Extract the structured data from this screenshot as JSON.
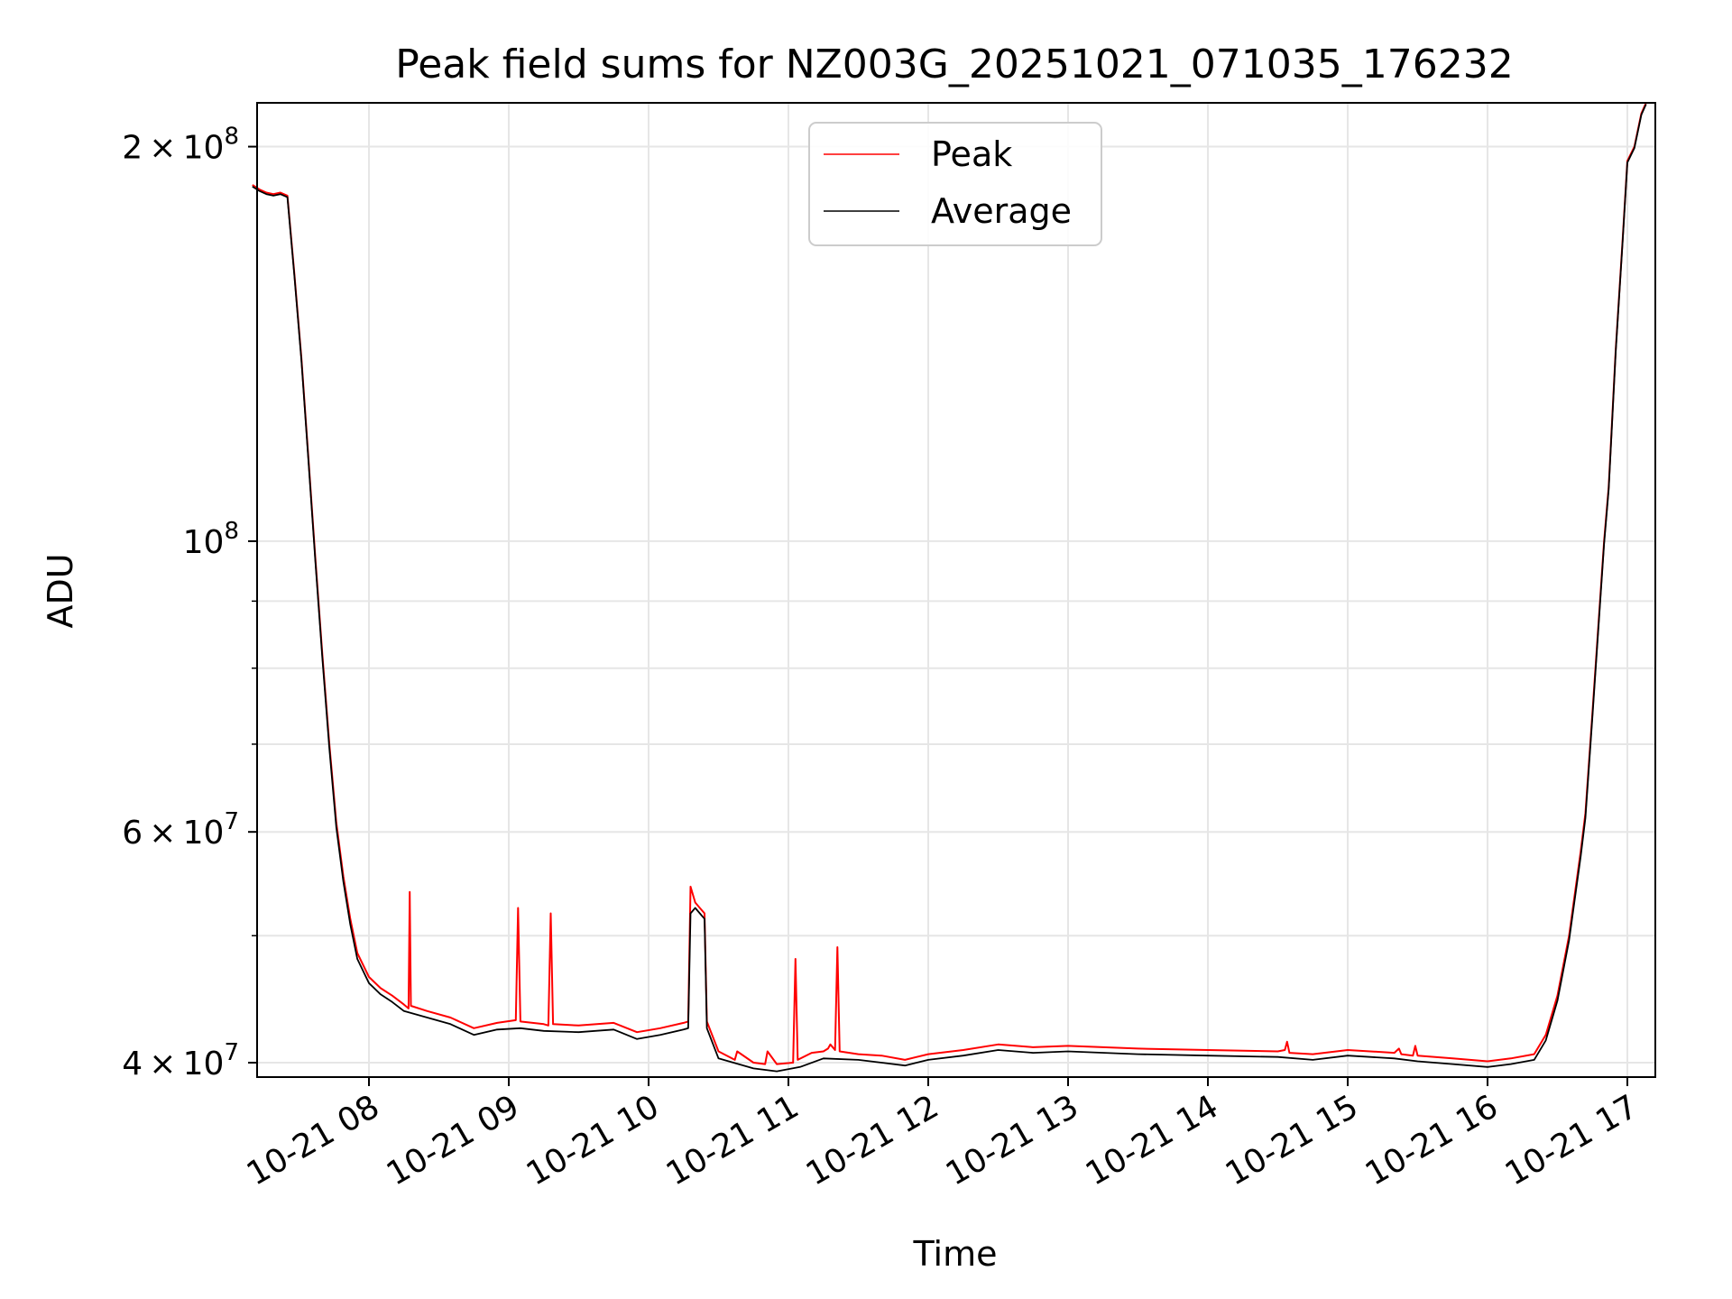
{
  "chart_data": {
    "type": "line",
    "title": "Peak field sums for NZ003G_20251021_071035_176232",
    "xlabel": "Time",
    "ylabel": "ADU",
    "xlim": [
      "2025-10-21 07:12",
      "2025-10-21 17:12"
    ],
    "ylim": [
      39000000,
      216000000
    ],
    "yscale": "log",
    "grid": true,
    "legend": "upper center",
    "x_ticks": [
      {
        "t": "2025-10-21 08:00",
        "label": "10-21 08"
      },
      {
        "t": "2025-10-21 09:00",
        "label": "10-21 09"
      },
      {
        "t": "2025-10-21 10:00",
        "label": "10-21 10"
      },
      {
        "t": "2025-10-21 11:00",
        "label": "10-21 11"
      },
      {
        "t": "2025-10-21 12:00",
        "label": "10-21 12"
      },
      {
        "t": "2025-10-21 13:00",
        "label": "10-21 13"
      },
      {
        "t": "2025-10-21 14:00",
        "label": "10-21 14"
      },
      {
        "t": "2025-10-21 15:00",
        "label": "10-21 15"
      },
      {
        "t": "2025-10-21 16:00",
        "label": "10-21 16"
      },
      {
        "t": "2025-10-21 17:00",
        "label": "10-21 17"
      }
    ],
    "y_ticks": [
      {
        "value": 40000000,
        "mant": "4",
        "exp": "7"
      },
      {
        "value": 60000000,
        "mant": "6",
        "exp": "7"
      },
      {
        "value": 100000000,
        "mant": "",
        "exp": "8"
      },
      {
        "value": 200000000,
        "mant": "2",
        "exp": "8"
      }
    ],
    "y_minor": [
      50000000,
      70000000,
      80000000,
      90000000
    ],
    "series": [
      {
        "name": "Peak",
        "color": "#ff0000",
        "points": [
          [
            "2025-10-21 07:10",
            187000000
          ],
          [
            "2025-10-21 07:13",
            185500000
          ],
          [
            "2025-10-21 07:16",
            184500000
          ],
          [
            "2025-10-21 07:19",
            184000000
          ],
          [
            "2025-10-21 07:22",
            184500000
          ],
          [
            "2025-10-21 07:25",
            183500000
          ],
          [
            "2025-10-21 07:28",
            160000000
          ],
          [
            "2025-10-21 07:31",
            138000000
          ],
          [
            "2025-10-21 07:34",
            116000000
          ],
          [
            "2025-10-21 07:37",
            97000000
          ],
          [
            "2025-10-21 07:40",
            82000000
          ],
          [
            "2025-10-21 07:43",
            70000000
          ],
          [
            "2025-10-21 07:46",
            61000000
          ],
          [
            "2025-10-21 07:49",
            55500000
          ],
          [
            "2025-10-21 07:52",
            51500000
          ],
          [
            "2025-10-21 07:55",
            48500000
          ],
          [
            "2025-10-21 08:00",
            46500000
          ],
          [
            "2025-10-21 08:05",
            45600000
          ],
          [
            "2025-10-21 08:10",
            45000000
          ],
          [
            "2025-10-21 08:15",
            44300000
          ],
          [
            "2025-10-21 08:17",
            44000000
          ],
          [
            "2025-10-21 08:17:30",
            54000000
          ],
          [
            "2025-10-21 08:18",
            44200000
          ],
          [
            "2025-10-21 08:25",
            43800000
          ],
          [
            "2025-10-21 08:35",
            43300000
          ],
          [
            "2025-10-21 08:45",
            42500000
          ],
          [
            "2025-10-21 08:55",
            42900000
          ],
          [
            "2025-10-21 09:03",
            43100000
          ],
          [
            "2025-10-21 09:04",
            52500000
          ],
          [
            "2025-10-21 09:05",
            43000000
          ],
          [
            "2025-10-21 09:15",
            42800000
          ],
          [
            "2025-10-21 09:17",
            42700000
          ],
          [
            "2025-10-21 09:18",
            52000000
          ],
          [
            "2025-10-21 09:19",
            42800000
          ],
          [
            "2025-10-21 09:30",
            42700000
          ],
          [
            "2025-10-21 09:45",
            42900000
          ],
          [
            "2025-10-21 09:55",
            42200000
          ],
          [
            "2025-10-21 10:05",
            42500000
          ],
          [
            "2025-10-21 10:15",
            42900000
          ],
          [
            "2025-10-21 10:17",
            43000000
          ],
          [
            "2025-10-21 10:18",
            54500000
          ],
          [
            "2025-10-21 10:20",
            53000000
          ],
          [
            "2025-10-21 10:22",
            52500000
          ],
          [
            "2025-10-21 10:24",
            52000000
          ],
          [
            "2025-10-21 10:25",
            43000000
          ],
          [
            "2025-10-21 10:30",
            40800000
          ],
          [
            "2025-10-21 10:37",
            40200000
          ],
          [
            "2025-10-21 10:38",
            40800000
          ],
          [
            "2025-10-21 10:45",
            40000000
          ],
          [
            "2025-10-21 10:50",
            39900000
          ],
          [
            "2025-10-21 10:51",
            40800000
          ],
          [
            "2025-10-21 10:55",
            39900000
          ],
          [
            "2025-10-21 11:02",
            40000000
          ],
          [
            "2025-10-21 11:03",
            48000000
          ],
          [
            "2025-10-21 11:04",
            40200000
          ],
          [
            "2025-10-21 11:10",
            40700000
          ],
          [
            "2025-10-21 11:15",
            40800000
          ],
          [
            "2025-10-21 11:17",
            41000000
          ],
          [
            "2025-10-21 11:18",
            41300000
          ],
          [
            "2025-10-21 11:20",
            40900000
          ],
          [
            "2025-10-21 11:21",
            49000000
          ],
          [
            "2025-10-21 11:22",
            40800000
          ],
          [
            "2025-10-21 11:30",
            40600000
          ],
          [
            "2025-10-21 11:40",
            40500000
          ],
          [
            "2025-10-21 11:50",
            40200000
          ],
          [
            "2025-10-21 12:00",
            40600000
          ],
          [
            "2025-10-21 12:15",
            40900000
          ],
          [
            "2025-10-21 12:30",
            41300000
          ],
          [
            "2025-10-21 12:45",
            41100000
          ],
          [
            "2025-10-21 13:00",
            41200000
          ],
          [
            "2025-10-21 13:30",
            41000000
          ],
          [
            "2025-10-21 14:00",
            40900000
          ],
          [
            "2025-10-21 14:30",
            40800000
          ],
          [
            "2025-10-21 14:33",
            40900000
          ],
          [
            "2025-10-21 14:34",
            41500000
          ],
          [
            "2025-10-21 14:35",
            40700000
          ],
          [
            "2025-10-21 14:45",
            40600000
          ],
          [
            "2025-10-21 15:00",
            40900000
          ],
          [
            "2025-10-21 15:20",
            40700000
          ],
          [
            "2025-10-21 15:22",
            41000000
          ],
          [
            "2025-10-21 15:23",
            40600000
          ],
          [
            "2025-10-21 15:28",
            40500000
          ],
          [
            "2025-10-21 15:29",
            41200000
          ],
          [
            "2025-10-21 15:30",
            40500000
          ],
          [
            "2025-10-21 15:45",
            40300000
          ],
          [
            "2025-10-21 16:00",
            40100000
          ],
          [
            "2025-10-21 16:10",
            40300000
          ],
          [
            "2025-10-21 16:20",
            40600000
          ],
          [
            "2025-10-21 16:25",
            42000000
          ],
          [
            "2025-10-21 16:30",
            45000000
          ],
          [
            "2025-10-21 16:35",
            50000000
          ],
          [
            "2025-10-21 16:40",
            58000000
          ],
          [
            "2025-10-21 16:42",
            62000000
          ],
          [
            "2025-10-21 16:45",
            74000000
          ],
          [
            "2025-10-21 16:50",
            100000000
          ],
          [
            "2025-10-21 16:52",
            110000000
          ],
          [
            "2025-10-21 16:55",
            140000000
          ],
          [
            "2025-10-21 16:58",
            170000000
          ],
          [
            "2025-10-21 17:00",
            195000000
          ],
          [
            "2025-10-21 17:03",
            200000000
          ],
          [
            "2025-10-21 17:06",
            212000000
          ],
          [
            "2025-10-21 17:08",
            216000000
          ]
        ]
      },
      {
        "name": "Average",
        "color": "#000000",
        "points": [
          [
            "2025-10-21 07:10",
            186500000
          ],
          [
            "2025-10-21 07:13",
            185000000
          ],
          [
            "2025-10-21 07:16",
            184000000
          ],
          [
            "2025-10-21 07:19",
            183500000
          ],
          [
            "2025-10-21 07:22",
            184000000
          ],
          [
            "2025-10-21 07:25",
            183000000
          ],
          [
            "2025-10-21 07:28",
            159500000
          ],
          [
            "2025-10-21 07:31",
            137500000
          ],
          [
            "2025-10-21 07:34",
            115500000
          ],
          [
            "2025-10-21 07:37",
            96500000
          ],
          [
            "2025-10-21 07:40",
            81500000
          ],
          [
            "2025-10-21 07:43",
            69500000
          ],
          [
            "2025-10-21 07:46",
            60500000
          ],
          [
            "2025-10-21 07:49",
            55000000
          ],
          [
            "2025-10-21 07:52",
            51000000
          ],
          [
            "2025-10-21 07:55",
            48000000
          ],
          [
            "2025-10-21 08:00",
            46000000
          ],
          [
            "2025-10-21 08:05",
            45100000
          ],
          [
            "2025-10-21 08:10",
            44500000
          ],
          [
            "2025-10-21 08:15",
            43800000
          ],
          [
            "2025-10-21 08:25",
            43300000
          ],
          [
            "2025-10-21 08:35",
            42800000
          ],
          [
            "2025-10-21 08:45",
            42000000
          ],
          [
            "2025-10-21 08:55",
            42400000
          ],
          [
            "2025-10-21 09:05",
            42500000
          ],
          [
            "2025-10-21 09:15",
            42300000
          ],
          [
            "2025-10-21 09:30",
            42200000
          ],
          [
            "2025-10-21 09:45",
            42400000
          ],
          [
            "2025-10-21 09:55",
            41700000
          ],
          [
            "2025-10-21 10:05",
            42000000
          ],
          [
            "2025-10-21 10:15",
            42400000
          ],
          [
            "2025-10-21 10:17",
            42500000
          ],
          [
            "2025-10-21 10:18",
            52000000
          ],
          [
            "2025-10-21 10:20",
            52500000
          ],
          [
            "2025-10-21 10:22",
            52000000
          ],
          [
            "2025-10-21 10:24",
            51500000
          ],
          [
            "2025-10-21 10:25",
            42500000
          ],
          [
            "2025-10-21 10:30",
            40300000
          ],
          [
            "2025-10-21 10:45",
            39600000
          ],
          [
            "2025-10-21 10:55",
            39400000
          ],
          [
            "2025-10-21 11:05",
            39700000
          ],
          [
            "2025-10-21 11:15",
            40300000
          ],
          [
            "2025-10-21 11:30",
            40200000
          ],
          [
            "2025-10-21 11:40",
            40000000
          ],
          [
            "2025-10-21 11:50",
            39800000
          ],
          [
            "2025-10-21 12:00",
            40200000
          ],
          [
            "2025-10-21 12:15",
            40500000
          ],
          [
            "2025-10-21 12:30",
            40900000
          ],
          [
            "2025-10-21 12:45",
            40700000
          ],
          [
            "2025-10-21 13:00",
            40800000
          ],
          [
            "2025-10-21 13:30",
            40600000
          ],
          [
            "2025-10-21 14:00",
            40500000
          ],
          [
            "2025-10-21 14:30",
            40400000
          ],
          [
            "2025-10-21 14:45",
            40200000
          ],
          [
            "2025-10-21 15:00",
            40500000
          ],
          [
            "2025-10-21 15:20",
            40300000
          ],
          [
            "2025-10-21 15:30",
            40100000
          ],
          [
            "2025-10-21 15:45",
            39900000
          ],
          [
            "2025-10-21 16:00",
            39700000
          ],
          [
            "2025-10-21 16:10",
            39900000
          ],
          [
            "2025-10-21 16:20",
            40200000
          ],
          [
            "2025-10-21 16:25",
            41600000
          ],
          [
            "2025-10-21 16:30",
            44600000
          ],
          [
            "2025-10-21 16:35",
            49600000
          ],
          [
            "2025-10-21 16:40",
            57500000
          ],
          [
            "2025-10-21 16:42",
            61500000
          ],
          [
            "2025-10-21 16:45",
            73500000
          ],
          [
            "2025-10-21 16:50",
            99500000
          ],
          [
            "2025-10-21 16:52",
            109500000
          ],
          [
            "2025-10-21 16:55",
            139500000
          ],
          [
            "2025-10-21 16:58",
            169500000
          ],
          [
            "2025-10-21 17:00",
            194500000
          ],
          [
            "2025-10-21 17:03",
            199500000
          ],
          [
            "2025-10-21 17:06",
            211500000
          ],
          [
            "2025-10-21 17:08",
            215500000
          ]
        ]
      }
    ]
  }
}
